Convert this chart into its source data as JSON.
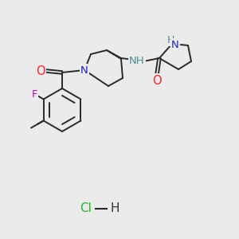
{
  "bg_color": "#ebebeb",
  "bond_color": "#2a2a2a",
  "figsize": [
    3.0,
    3.0
  ],
  "dpi": 100,
  "colors": {
    "O": "#ff2020",
    "N": "#2020cc",
    "NH_teal": "#4a9090",
    "F": "#cc00cc",
    "Cl": "#22bb22",
    "methyl_label": "#333333"
  }
}
